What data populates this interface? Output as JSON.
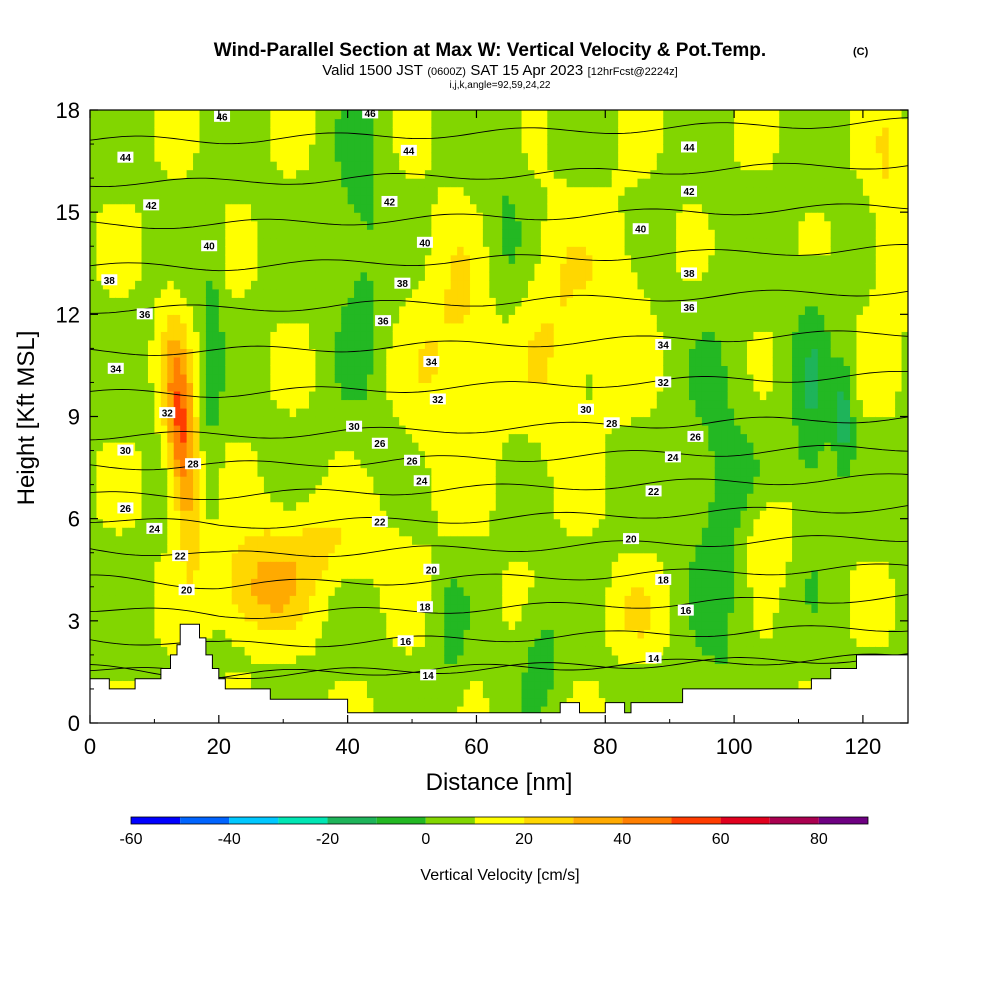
{
  "chart_data": {
    "type": "heatmap",
    "title": "Wind-Parallel Section at Max W: Vertical Velocity & Pot.Temp.",
    "title_mark": "(C)",
    "subtitle_parts": [
      "Valid 1500 JST",
      "(0600Z)",
      "SAT 15 Apr 2023",
      "[12hrFcst@2224z]"
    ],
    "subtitle2": "i,j,k,angle=92,59,24,22",
    "xlabel": "Distance [nm]",
    "ylabel": "Height [Kft MSL]",
    "xlim": [
      0,
      127
    ],
    "ylim": [
      0,
      18
    ],
    "x_ticks": [
      "0",
      "20",
      "40",
      "60",
      "80",
      "100",
      "120"
    ],
    "y_ticks": [
      "0",
      "3",
      "6",
      "9",
      "12",
      "15",
      "18"
    ],
    "colorbar": {
      "label": "Vertical Velocity [cm/s]",
      "bounds": [
        -60,
        -50,
        -40,
        -30,
        -20,
        -10,
        0,
        10,
        20,
        30,
        40,
        50,
        60,
        70,
        80,
        90
      ],
      "tick_labels": [
        "-60",
        "-40",
        "-20",
        "0",
        "20",
        "40",
        "60",
        "80"
      ],
      "colors": [
        "#0000ff",
        "#0064ff",
        "#00c8ff",
        "#00e6b4",
        "#1eb45a",
        "#23b823",
        "#82d600",
        "#ffff00",
        "#ffd700",
        "#ffaa00",
        "#ff7f00",
        "#ff3c00",
        "#e1001e",
        "#aa0050",
        "#6e0082"
      ]
    },
    "theta_contours": {
      "interval": 2,
      "levels_labeled": [
        14,
        16,
        18,
        20,
        22,
        24,
        26,
        28,
        30,
        32,
        34,
        36,
        38,
        40,
        42,
        44,
        46
      ],
      "labels": [
        {
          "v": "46",
          "x": 20.5,
          "y": 17.8
        },
        {
          "v": "46",
          "x": 43.5,
          "y": 17.9
        },
        {
          "v": "44",
          "x": 5.5,
          "y": 16.6
        },
        {
          "v": "44",
          "x": 49.5,
          "y": 16.8
        },
        {
          "v": "44",
          "x": 93,
          "y": 16.9
        },
        {
          "v": "42",
          "x": 9.5,
          "y": 15.2
        },
        {
          "v": "42",
          "x": 46.5,
          "y": 15.3
        },
        {
          "v": "42",
          "x": 93,
          "y": 15.6
        },
        {
          "v": "40",
          "x": 18.5,
          "y": 14.0
        },
        {
          "v": "40",
          "x": 52,
          "y": 14.1
        },
        {
          "v": "40",
          "x": 85.5,
          "y": 14.5
        },
        {
          "v": "38",
          "x": 3,
          "y": 13.0
        },
        {
          "v": "38",
          "x": 48.5,
          "y": 12.9
        },
        {
          "v": "38",
          "x": 93,
          "y": 13.2
        },
        {
          "v": "36",
          "x": 8.5,
          "y": 12.0
        },
        {
          "v": "36",
          "x": 45.5,
          "y": 11.8
        },
        {
          "v": "36",
          "x": 93,
          "y": 12.2
        },
        {
          "v": "34",
          "x": 4,
          "y": 10.4
        },
        {
          "v": "34",
          "x": 53,
          "y": 10.6
        },
        {
          "v": "34",
          "x": 89,
          "y": 11.1
        },
        {
          "v": "32",
          "x": 12,
          "y": 9.1
        },
        {
          "v": "32",
          "x": 54,
          "y": 9.5
        },
        {
          "v": "32",
          "x": 89,
          "y": 10.0
        },
        {
          "v": "30",
          "x": 5.5,
          "y": 8.0
        },
        {
          "v": "30",
          "x": 41,
          "y": 8.7
        },
        {
          "v": "30",
          "x": 77,
          "y": 9.2
        },
        {
          "v": "28",
          "x": 16,
          "y": 7.6
        },
        {
          "v": "28",
          "x": 81,
          "y": 8.8
        },
        {
          "v": "26",
          "x": 5.5,
          "y": 6.3
        },
        {
          "v": "26",
          "x": 45,
          "y": 8.2
        },
        {
          "v": "26",
          "x": 50,
          "y": 7.7
        },
        {
          "v": "26",
          "x": 94,
          "y": 8.4
        },
        {
          "v": "24",
          "x": 10,
          "y": 5.7
        },
        {
          "v": "24",
          "x": 51.5,
          "y": 7.1
        },
        {
          "v": "24",
          "x": 90.5,
          "y": 7.8
        },
        {
          "v": "22",
          "x": 14,
          "y": 4.9
        },
        {
          "v": "22",
          "x": 45,
          "y": 5.9
        },
        {
          "v": "22",
          "x": 87.5,
          "y": 6.8
        },
        {
          "v": "20",
          "x": 15,
          "y": 3.9
        },
        {
          "v": "20",
          "x": 53,
          "y": 4.5
        },
        {
          "v": "20",
          "x": 84,
          "y": 5.4
        },
        {
          "v": "18",
          "x": 52,
          "y": 3.4
        },
        {
          "v": "18",
          "x": 89,
          "y": 4.2
        },
        {
          "v": "16",
          "x": 49,
          "y": 2.4
        },
        {
          "v": "16",
          "x": 92.5,
          "y": 3.3
        },
        {
          "v": "14",
          "x": 52.5,
          "y": 1.4
        },
        {
          "v": "14",
          "x": 87.5,
          "y": 1.9
        }
      ]
    },
    "terrain_profile": [
      [
        0,
        1.3
      ],
      [
        3,
        1.3
      ],
      [
        3,
        1.0
      ],
      [
        6,
        1.0
      ],
      [
        7,
        1.0
      ],
      [
        7,
        1.3
      ],
      [
        11,
        1.3
      ],
      [
        11,
        1.6
      ],
      [
        12.5,
        1.6
      ],
      [
        12.5,
        2.0
      ],
      [
        13.5,
        2.0
      ],
      [
        13.5,
        2.3
      ],
      [
        14,
        2.3
      ],
      [
        14,
        2.9
      ],
      [
        17,
        2.9
      ],
      [
        17,
        2.5
      ],
      [
        18,
        2.5
      ],
      [
        18,
        2.0
      ],
      [
        19,
        2.0
      ],
      [
        19,
        1.6
      ],
      [
        20,
        1.6
      ],
      [
        20,
        1.3
      ],
      [
        21,
        1.3
      ],
      [
        21,
        1.0
      ],
      [
        23,
        1.0
      ],
      [
        23,
        1.0
      ],
      [
        28,
        1.0
      ],
      [
        28,
        0.7
      ],
      [
        40,
        0.7
      ],
      [
        40,
        0.3
      ],
      [
        44,
        0.3
      ],
      [
        44,
        0.3
      ],
      [
        73,
        0.3
      ],
      [
        73,
        0.6
      ],
      [
        76,
        0.6
      ],
      [
        76,
        0.3
      ],
      [
        80,
        0.3
      ],
      [
        80,
        0.6
      ],
      [
        83,
        0.6
      ],
      [
        83,
        0.3
      ],
      [
        84,
        0.3
      ],
      [
        84,
        0.6
      ],
      [
        92,
        0.6
      ],
      [
        92,
        1.0
      ],
      [
        112,
        1.0
      ],
      [
        112,
        1.3
      ],
      [
        115,
        1.3
      ],
      [
        115,
        1.6
      ],
      [
        119,
        1.6
      ],
      [
        119,
        2.0
      ],
      [
        127,
        2.0
      ]
    ]
  }
}
